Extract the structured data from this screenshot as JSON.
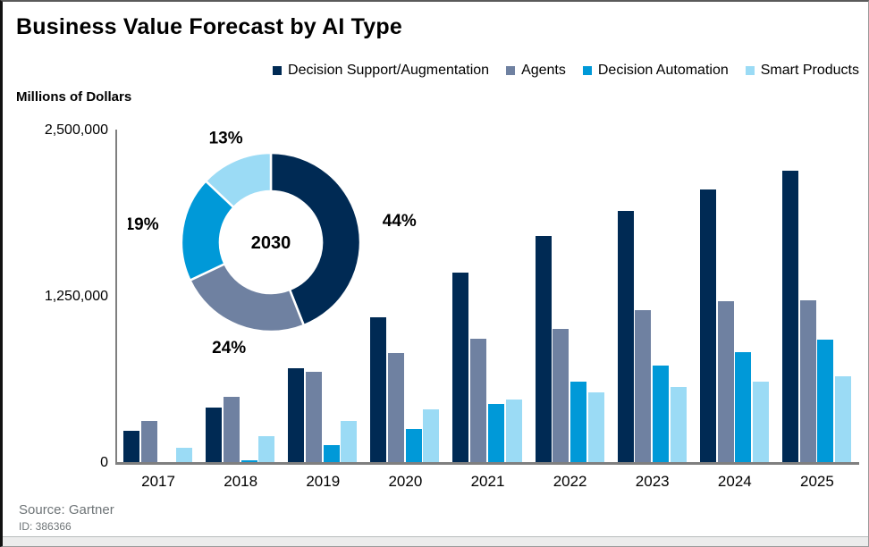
{
  "window": {
    "title": "Business Value Forecast by AI Type",
    "y_axis_title": "Millions of Dollars",
    "source": "Source: Gartner",
    "doc_id": "ID: 386366"
  },
  "colors": {
    "decision_support": "#002a54",
    "agents": "#6f81a1",
    "decision_automation": "#0099d8",
    "smart_products": "#9bdbf5",
    "axis": "#7f7f7f",
    "muted_text": "#6e7477"
  },
  "chart_data": [
    {
      "type": "bar",
      "title": "Business Value Forecast by AI Type",
      "ylabel": "Millions of Dollars",
      "xlabel": "",
      "grid": false,
      "legend_position": "top",
      "ylim": [
        0,
        2500000
      ],
      "yticks": [
        {
          "value": 0,
          "label": "0"
        },
        {
          "value": 1250000,
          "label": "1,250,000"
        },
        {
          "value": 2500000,
          "label": "2,500,000"
        }
      ],
      "categories": [
        "2017",
        "2018",
        "2019",
        "2020",
        "2021",
        "2022",
        "2023",
        "2024",
        "2025"
      ],
      "series": [
        {
          "name": "Decision Support/Augmentation",
          "color": "#002a54",
          "values": [
            235000,
            410000,
            705000,
            1090000,
            1425000,
            1700000,
            1890000,
            2050000,
            2190000
          ]
        },
        {
          "name": "Agents",
          "color": "#6f81a1",
          "values": [
            310000,
            490000,
            680000,
            820000,
            925000,
            1000000,
            1140000,
            1210000,
            1215000
          ]
        },
        {
          "name": "Decision Automation",
          "color": "#0099d8",
          "values": [
            0,
            15000,
            130000,
            250000,
            435000,
            605000,
            725000,
            825000,
            920000
          ]
        },
        {
          "name": "Smart Products",
          "color": "#9bdbf5",
          "values": [
            110000,
            195000,
            310000,
            395000,
            470000,
            525000,
            565000,
            605000,
            645000
          ]
        }
      ]
    },
    {
      "type": "donut",
      "center_label": "2030",
      "slices": [
        {
          "name": "Decision Support/Augmentation",
          "label": "44%",
          "value": 44,
          "color": "#002a54"
        },
        {
          "name": "Agents",
          "label": "24%",
          "value": 24,
          "color": "#6f81a1"
        },
        {
          "name": "Decision Automation",
          "label": "19%",
          "value": 19,
          "color": "#0099d8"
        },
        {
          "name": "Smart Products",
          "label": "13%",
          "value": 13,
          "color": "#9bdbf5"
        }
      ]
    }
  ]
}
